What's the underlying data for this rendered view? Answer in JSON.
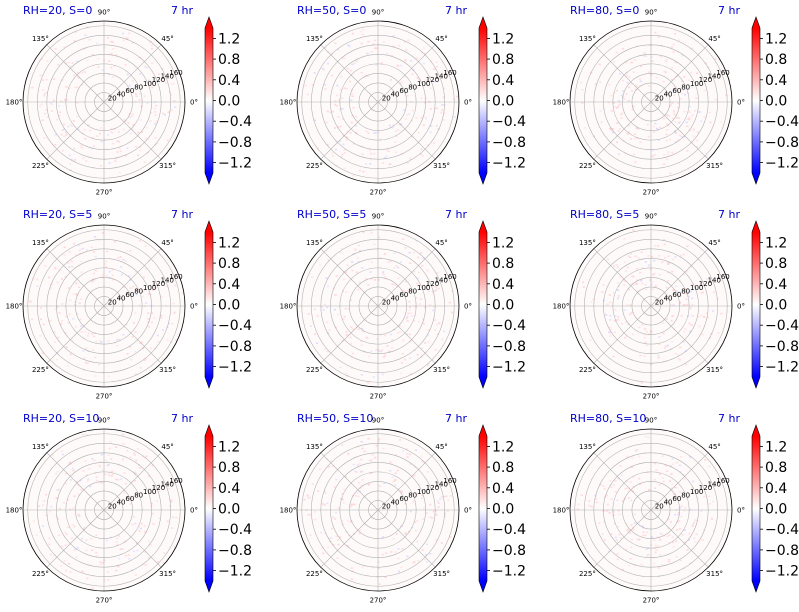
{
  "figure": {
    "background": "#ffffff",
    "title_color": "#0000cc"
  },
  "chart_data": {
    "type": "heatmap",
    "projection": "polar",
    "grid": true,
    "rows": 3,
    "cols": 3,
    "angle_ticks": [
      "0°",
      "45°",
      "90°",
      "135°",
      "180°",
      "225°",
      "270°",
      "315°"
    ],
    "radial_ticks": [
      "20",
      "40",
      "60",
      "80",
      "100",
      "120",
      "140",
      "160"
    ],
    "radial_values": [
      20,
      40,
      60,
      80,
      100,
      120,
      140,
      160
    ],
    "rlim": [
      0,
      170
    ],
    "colorbar": {
      "cmap": "bwr",
      "vmin": -1.4,
      "vmax": 1.4,
      "extend": "both",
      "ticks": [
        "1.2",
        "0.8",
        "0.4",
        "0.0",
        "−0.4",
        "−0.8",
        "−1.2"
      ],
      "tick_values": [
        1.2,
        0.8,
        0.4,
        0.0,
        -0.4,
        -0.8,
        -1.2
      ]
    },
    "panels": [
      {
        "title": "RH=20, S=0",
        "time": "7 hr",
        "rh": 20,
        "s": 0
      },
      {
        "title": "RH=50, S=0",
        "time": "7 hr",
        "rh": 50,
        "s": 0
      },
      {
        "title": "RH=80, S=0",
        "time": "7 hr",
        "rh": 80,
        "s": 0
      },
      {
        "title": "RH=20, S=5",
        "time": "7 hr",
        "rh": 20,
        "s": 5
      },
      {
        "title": "RH=50, S=5",
        "time": "7 hr",
        "rh": 50,
        "s": 5
      },
      {
        "title": "RH=80, S=5",
        "time": "7 hr",
        "rh": 80,
        "s": 5
      },
      {
        "title": "RH=20, S=10",
        "time": "7 hr",
        "rh": 20,
        "s": 10
      },
      {
        "title": "RH=50, S=10",
        "time": "7 hr",
        "rh": 50,
        "s": 10
      },
      {
        "title": "RH=80, S=10",
        "time": "7 hr",
        "rh": 80,
        "s": 10
      }
    ]
  }
}
